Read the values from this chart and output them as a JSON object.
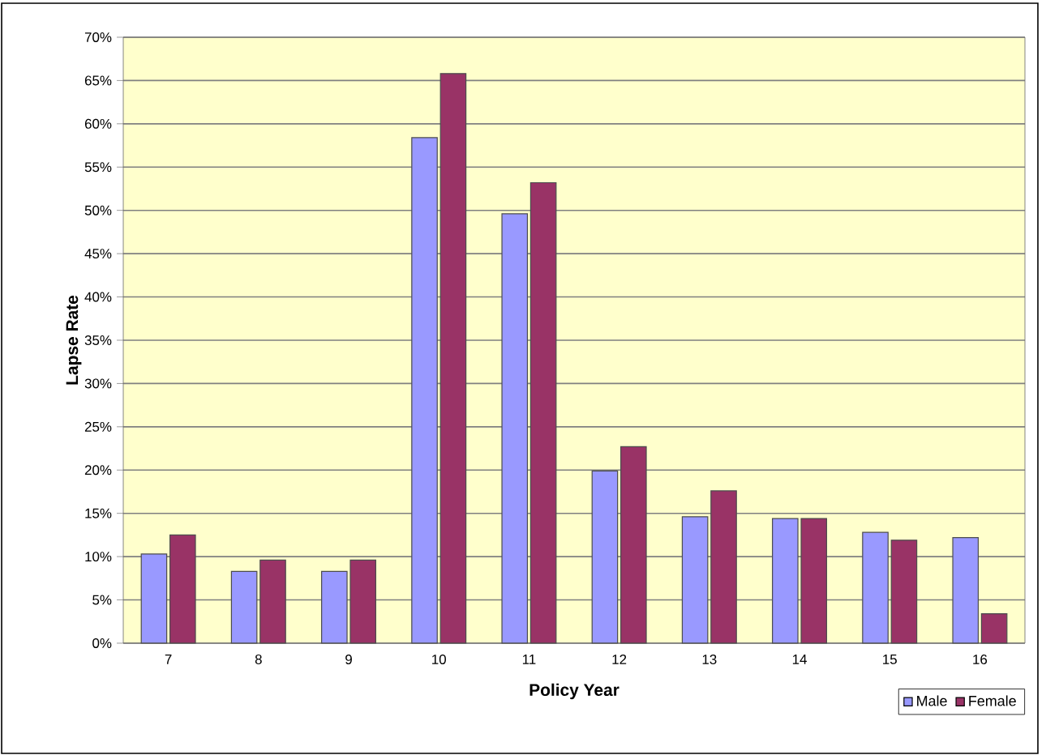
{
  "chart_data": {
    "type": "bar",
    "xlabel": "Policy Year",
    "ylabel": "Lapse Rate",
    "categories": [
      "7",
      "8",
      "9",
      "10",
      "11",
      "12",
      "13",
      "14",
      "15",
      "16"
    ],
    "series": [
      {
        "name": "Male",
        "color": "#9999ff",
        "values": [
          10.3,
          8.3,
          8.3,
          58.4,
          49.6,
          19.9,
          14.6,
          14.4,
          12.8,
          12.2
        ]
      },
      {
        "name": "Female",
        "color": "#993366",
        "values": [
          12.5,
          9.6,
          9.6,
          65.8,
          53.2,
          22.7,
          17.6,
          14.4,
          11.9,
          3.4
        ]
      }
    ],
    "ylim": [
      0,
      70
    ],
    "yticks": [
      {
        "value": 0,
        "label": "0%"
      },
      {
        "value": 5,
        "label": "5%"
      },
      {
        "value": 10,
        "label": "10%"
      },
      {
        "value": 15,
        "label": "15%"
      },
      {
        "value": 20,
        "label": "20%"
      },
      {
        "value": 25,
        "label": "25%"
      },
      {
        "value": 30,
        "label": "30%"
      },
      {
        "value": 35,
        "label": "35%"
      },
      {
        "value": 40,
        "label": "40%"
      },
      {
        "value": 45,
        "label": "45%"
      },
      {
        "value": 50,
        "label": "50%"
      },
      {
        "value": 55,
        "label": "55%"
      },
      {
        "value": 60,
        "label": "60%"
      },
      {
        "value": 65,
        "label": "65%"
      },
      {
        "value": 70,
        "label": "70%"
      }
    ],
    "grid": "y",
    "legend": "bottom right"
  }
}
